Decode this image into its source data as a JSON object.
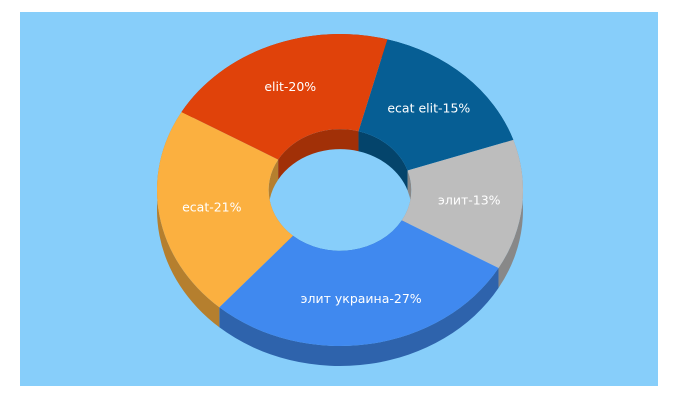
{
  "chart_data": {
    "type": "donut",
    "values": [
      15,
      13,
      27,
      21,
      20
    ],
    "value_labels": [
      "ecat elit-15%",
      "элит-13%",
      "элит украина-27%",
      "ecat-21%",
      "elit-20%"
    ],
    "colors": [
      "#065e94",
      "#bdbdbd",
      "#4089ef",
      "#fbb040",
      "#e0420a"
    ]
  }
}
